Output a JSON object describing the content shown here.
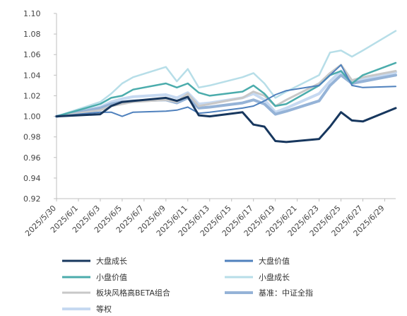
{
  "chart_data": {
    "type": "line",
    "title": "",
    "xlabel": "",
    "ylabel": "",
    "ylim": [
      0.92,
      1.1
    ],
    "yticks": [
      "1.10",
      "1.08",
      "1.06",
      "1.04",
      "1.02",
      "1.00",
      "0.98",
      "0.96",
      "0.94",
      "0.92"
    ],
    "xticks": [
      "2025/5/30",
      "2025/6/1",
      "2025/6/3",
      "2025/6/5",
      "2025/6/7",
      "2025/6/9",
      "2025/6/11",
      "2025/6/13",
      "2025/6/15",
      "2025/6/17",
      "2025/6/19",
      "2025/6/21",
      "2025/6/23",
      "2025/6/25",
      "2025/6/27",
      "2025/6/29"
    ],
    "x": [
      "2025/5/30",
      "2025/6/3",
      "2025/6/4",
      "2025/6/5",
      "2025/6/6",
      "2025/6/9",
      "2025/6/10",
      "2025/6/11",
      "2025/6/12",
      "2025/6/13",
      "2025/6/16",
      "2025/6/17",
      "2025/6/18",
      "2025/6/19",
      "2025/6/20",
      "2025/6/23",
      "2025/6/24",
      "2025/6/25",
      "2025/6/26",
      "2025/6/27",
      "2025/6/30"
    ],
    "grid": false,
    "legend_position": "bottom",
    "series": [
      {
        "name": "大盘成长",
        "color": "#17375e",
        "width": 3,
        "values": [
          1.0,
          1.002,
          1.01,
          1.014,
          1.015,
          1.018,
          1.015,
          1.019,
          1.001,
          1.0,
          1.004,
          0.992,
          0.99,
          0.976,
          0.975,
          0.978,
          0.99,
          1.004,
          0.996,
          0.995,
          1.008
        ]
      },
      {
        "name": "大盘价值",
        "color": "#4f81bd",
        "width": 2,
        "values": [
          1.0,
          1.004,
          1.004,
          1.0,
          1.004,
          1.005,
          1.006,
          1.009,
          1.003,
          1.004,
          1.008,
          1.01,
          1.015,
          1.021,
          1.025,
          1.03,
          1.04,
          1.05,
          1.03,
          1.028,
          1.029
        ]
      },
      {
        "name": "小盘价值",
        "color": "#4bacac",
        "width": 2.5,
        "values": [
          1.0,
          1.012,
          1.018,
          1.02,
          1.026,
          1.032,
          1.028,
          1.032,
          1.023,
          1.02,
          1.024,
          1.03,
          1.022,
          1.01,
          1.012,
          1.03,
          1.04,
          1.044,
          1.032,
          1.04,
          1.052
        ]
      },
      {
        "name": "小盘成长",
        "color": "#b7dee8",
        "width": 2.5,
        "values": [
          1.0,
          1.014,
          1.022,
          1.032,
          1.038,
          1.048,
          1.034,
          1.046,
          1.028,
          1.03,
          1.038,
          1.042,
          1.032,
          1.018,
          1.024,
          1.04,
          1.062,
          1.064,
          1.058,
          1.064,
          1.083
        ]
      },
      {
        "name": "板块风格高BETA组合",
        "color": "#c8c8c8",
        "width": 3,
        "values": [
          1.0,
          1.006,
          1.01,
          1.012,
          1.014,
          1.016,
          1.014,
          1.022,
          1.01,
          1.012,
          1.018,
          1.024,
          1.02,
          1.01,
          1.016,
          1.032,
          1.042,
          1.05,
          1.035,
          1.038,
          1.044
        ]
      },
      {
        "name": "基准：中证全指",
        "color": "#95b3d7",
        "width": 4,
        "values": [
          1.0,
          1.008,
          1.012,
          1.014,
          1.015,
          1.016,
          1.013,
          1.018,
          1.008,
          1.009,
          1.013,
          1.016,
          1.012,
          1.002,
          1.005,
          1.015,
          1.03,
          1.04,
          1.032,
          1.034,
          1.04
        ]
      },
      {
        "name": "等权",
        "color": "#c6d9f1",
        "width": 4,
        "values": [
          1.0,
          1.009,
          1.014,
          1.017,
          1.019,
          1.021,
          1.018,
          1.023,
          1.012,
          1.013,
          1.018,
          1.022,
          1.016,
          1.004,
          1.008,
          1.022,
          1.034,
          1.044,
          1.034,
          1.036,
          1.043
        ]
      }
    ]
  }
}
